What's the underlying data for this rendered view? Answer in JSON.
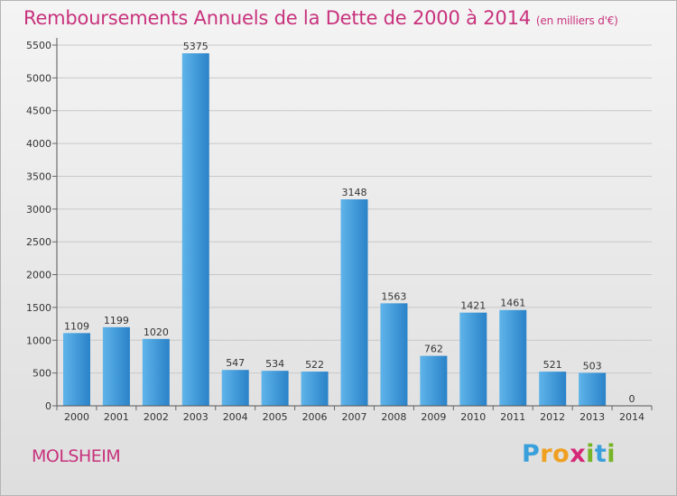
{
  "header": {
    "title": "Remboursements Annuels de la Dette de 2000 à 2014",
    "unit": "(en milliers d'€)"
  },
  "footer": {
    "town": "MOLSHEIM",
    "logo_letters": [
      "P",
      "r",
      "o",
      "x",
      "i",
      "t",
      "i"
    ],
    "logo_colors": [
      "#3aa0dc",
      "#f0a020",
      "#f0a020",
      "#d62878",
      "#78b428",
      "#3aa0dc",
      "#78b428"
    ]
  },
  "colors": {
    "bar_light": "#5fb4ea",
    "bar_dark": "#2a82c8",
    "accent": "#c8327d"
  },
  "chart_data": {
    "type": "bar",
    "title": "Remboursements Annuels de la Dette de 2000 à 2014",
    "xlabel": "",
    "ylabel": "",
    "ylim": [
      0,
      5500
    ],
    "yticks": [
      0,
      500,
      1000,
      1500,
      2000,
      2500,
      3000,
      3500,
      4000,
      4500,
      5000,
      5500
    ],
    "grid": true,
    "categories": [
      "2000",
      "2001",
      "2002",
      "2003",
      "2004",
      "2005",
      "2006",
      "2007",
      "2008",
      "2009",
      "2010",
      "2011",
      "2012",
      "2013",
      "2014"
    ],
    "values": [
      1109,
      1199,
      1020,
      5375,
      547,
      534,
      522,
      3148,
      1563,
      762,
      1421,
      1461,
      521,
      503,
      0
    ]
  }
}
